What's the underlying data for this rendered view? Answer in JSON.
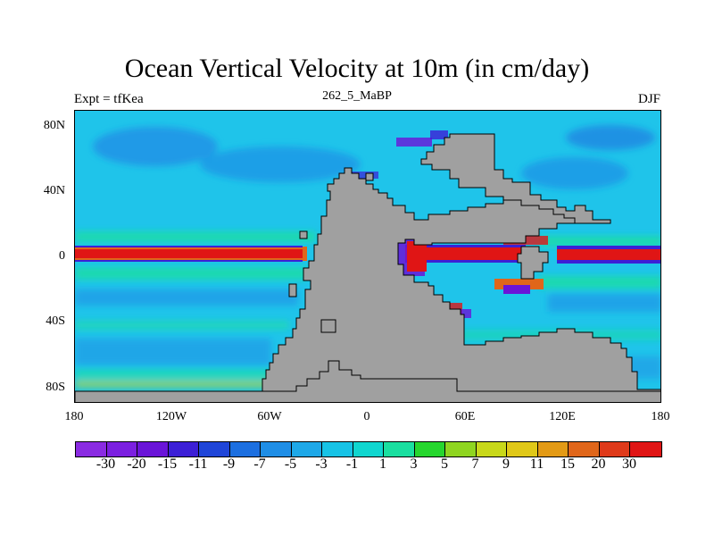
{
  "title": "Ocean Vertical Velocity at 10m (in cm/day)",
  "left_label": "Expt = tfKea",
  "center_label": "262_5_MaBP",
  "right_label": "DJF",
  "lat_labels": [
    "80N",
    "40N",
    "0",
    "40S",
    "80S"
  ],
  "lon_labels": [
    "180",
    "120W",
    "60W",
    "0",
    "60E",
    "120E",
    "180"
  ],
  "colorbar": {
    "labels": [
      "-30",
      "-20",
      "-15",
      "-11",
      "-9",
      "-7",
      "-5",
      "-3",
      "-1",
      "1",
      "3",
      "5",
      "7",
      "9",
      "11",
      "15",
      "20",
      "30"
    ],
    "colors": [
      "#8a2be2",
      "#7b1fe0",
      "#6a14d8",
      "#3c1fd6",
      "#1f45d8",
      "#1c6fe0",
      "#1f8ee6",
      "#1ea8e8",
      "#17c3e6",
      "#10d6cf",
      "#1adfa0",
      "#26d62e",
      "#8fd520",
      "#c8d81a",
      "#e0c818",
      "#e39a15",
      "#e0661a",
      "#df3a1a",
      "#e01515"
    ]
  },
  "colors": {
    "land": "#a0a0a0",
    "ocean_base": "#1fc4ea",
    "background": "#ffffff"
  }
}
